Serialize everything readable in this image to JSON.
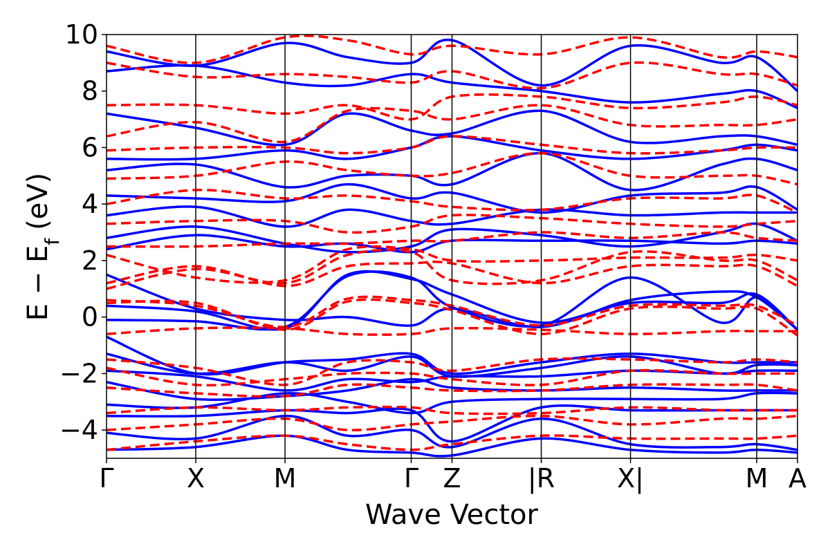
{
  "chart_data": {
    "type": "line",
    "xlabel": "Wave Vector",
    "ylabel": "E − E",
    "ylabel_sub": "f",
    "ylabel_unit": "(eV)",
    "ylim": [
      -5,
      10
    ],
    "yticks": [
      -4,
      -2,
      0,
      2,
      4,
      6,
      8,
      10
    ],
    "ytick_labels": [
      "−4",
      "−2",
      "0",
      "2",
      "4",
      "6",
      "8",
      "10"
    ],
    "kpoints": [
      {
        "label": "Γ",
        "x": 0.0
      },
      {
        "label": "X",
        "x": 1.0
      },
      {
        "label": "M",
        "x": 2.0
      },
      {
        "label": "Γ",
        "x": 3.414
      },
      {
        "label": "Z",
        "x": 3.871
      },
      {
        "label": "|R",
        "x": 4.871
      },
      {
        "label": "X|",
        "x": 5.871
      },
      {
        "label": "M",
        "x": 7.285
      },
      {
        "label": "A",
        "x": 7.742
      }
    ],
    "xlim": [
      0,
      7.742
    ],
    "series_styles": {
      "blue": "#0000ff",
      "red": "#ff0000"
    },
    "series": [
      {
        "color": "blue",
        "values": [
          -0.1,
          -0.15,
          -0.35,
          1.45,
          1.4,
          0.35,
          -0.3,
          1.4,
          -0.2,
          0.7,
          -0.45
        ]
      },
      {
        "color": "blue",
        "values": [
          0.4,
          0.2,
          -0.4,
          1.5,
          1.35,
          0.8,
          -0.2,
          0.5,
          0.5,
          0.8,
          -0.45
        ]
      },
      {
        "color": "blue",
        "values": [
          1.5,
          0.3,
          -0.1,
          0.0,
          -0.3,
          0.3,
          -0.35,
          0.6,
          0.9,
          0.7,
          -0.45
        ]
      },
      {
        "color": "blue",
        "values": [
          -0.7,
          -2.0,
          -1.6,
          -1.5,
          -1.3,
          -2.0,
          -1.6,
          -1.3,
          -1.6,
          -1.6,
          -1.6
        ]
      },
      {
        "color": "blue",
        "values": [
          -1.3,
          -2.0,
          -1.6,
          -1.9,
          -1.4,
          -2.1,
          -1.8,
          -1.4,
          -2.0,
          -1.7,
          -1.7
        ]
      },
      {
        "color": "blue",
        "values": [
          -1.9,
          -2.1,
          -2.6,
          -2.2,
          -2.3,
          -2.1,
          -2.1,
          -1.9,
          -2.0,
          -1.9,
          -1.9
        ]
      },
      {
        "color": "blue",
        "values": [
          -2.3,
          -2.9,
          -2.8,
          -2.6,
          -2.2,
          -2.5,
          -2.6,
          -2.5,
          -2.6,
          -2.6,
          -2.6
        ]
      },
      {
        "color": "blue",
        "values": [
          -3.1,
          -3.2,
          -2.7,
          -3.0,
          -3.4,
          -3.0,
          -2.9,
          -2.9,
          -2.9,
          -2.7,
          -2.7
        ]
      },
      {
        "color": "blue",
        "values": [
          -3.5,
          -3.5,
          -3.3,
          -3.4,
          -3.3,
          -4.4,
          -3.2,
          -3.3,
          -3.3,
          -3.3,
          -3.3
        ]
      },
      {
        "color": "blue",
        "values": [
          -4.1,
          -4.3,
          -3.5,
          -4.2,
          -4.0,
          -4.6,
          -3.6,
          -4.5,
          -4.6,
          -4.5,
          -4.7
        ]
      },
      {
        "color": "blue",
        "values": [
          -4.7,
          -4.6,
          -4.2,
          -4.7,
          -4.8,
          -4.9,
          -4.3,
          -4.7,
          -4.8,
          -4.7,
          -4.8
        ]
      },
      {
        "color": "blue",
        "values": [
          2.4,
          2.9,
          2.5,
          2.6,
          2.3,
          2.7,
          2.7,
          2.7,
          2.6,
          2.7,
          2.6
        ]
      },
      {
        "color": "blue",
        "values": [
          2.8,
          3.2,
          2.6,
          2.3,
          2.5,
          3.1,
          2.9,
          2.5,
          3.0,
          3.3,
          2.7
        ]
      },
      {
        "color": "blue",
        "values": [
          3.6,
          3.9,
          3.2,
          3.8,
          3.4,
          3.3,
          3.8,
          3.6,
          3.7,
          3.7,
          3.7
        ]
      },
      {
        "color": "blue",
        "values": [
          4.3,
          4.2,
          4.1,
          4.7,
          4.2,
          4.4,
          3.7,
          4.3,
          4.4,
          4.6,
          3.8
        ]
      },
      {
        "color": "blue",
        "values": [
          5.2,
          5.4,
          4.6,
          5.0,
          5.0,
          4.7,
          5.8,
          4.5,
          5.4,
          5.6,
          5.2
        ]
      },
      {
        "color": "blue",
        "values": [
          5.6,
          5.6,
          5.9,
          5.6,
          6.0,
          6.4,
          5.9,
          5.6,
          5.9,
          6.1,
          5.9
        ]
      },
      {
        "color": "blue",
        "values": [
          7.2,
          6.7,
          6.1,
          7.2,
          6.6,
          6.5,
          7.3,
          6.2,
          6.4,
          6.4,
          6.1
        ]
      },
      {
        "color": "blue",
        "values": [
          8.7,
          8.9,
          8.3,
          8.2,
          8.6,
          8.3,
          8.0,
          7.6,
          7.9,
          8.0,
          7.4
        ]
      },
      {
        "color": "blue",
        "values": [
          9.4,
          8.9,
          9.7,
          9.2,
          9.0,
          9.8,
          8.2,
          9.6,
          9.0,
          9.2,
          8.0
        ]
      },
      {
        "color": "red",
        "values": [
          0.6,
          0.4,
          -0.35,
          0.65,
          0.6,
          0.4,
          -0.3,
          0.4,
          0.4,
          0.4,
          -0.3
        ]
      },
      {
        "color": "red",
        "values": [
          0.5,
          0.5,
          -0.45,
          0.55,
          0.5,
          0.25,
          -0.6,
          0.3,
          0.3,
          0.3,
          -0.65
        ]
      },
      {
        "color": "red",
        "values": [
          -0.6,
          -0.4,
          -0.4,
          -0.6,
          -0.6,
          -0.4,
          -0.45,
          -0.6,
          -0.5,
          -0.5,
          -0.5
        ]
      },
      {
        "color": "red",
        "values": [
          1.2,
          1.8,
          1.1,
          1.8,
          1.9,
          1.9,
          1.2,
          1.8,
          1.8,
          1.8,
          1.1
        ]
      },
      {
        "color": "red",
        "values": [
          1.0,
          1.7,
          1.2,
          2.2,
          2.3,
          1.3,
          1.3,
          2.3,
          2.0,
          2.0,
          1.3
        ]
      },
      {
        "color": "red",
        "values": [
          2.2,
          1.4,
          1.3,
          2.4,
          2.4,
          2.0,
          2.0,
          2.1,
          2.1,
          2.2,
          2.0
        ]
      },
      {
        "color": "red",
        "values": [
          2.5,
          2.5,
          2.6,
          2.6,
          2.7,
          2.7,
          3.0,
          2.8,
          3.0,
          2.8,
          2.7
        ]
      },
      {
        "color": "red",
        "values": [
          3.3,
          3.4,
          3.4,
          3.0,
          3.2,
          3.6,
          3.5,
          3.3,
          3.2,
          3.3,
          3.4
        ]
      },
      {
        "color": "red",
        "values": [
          4.0,
          4.5,
          4.2,
          4.3,
          4.1,
          3.9,
          3.8,
          4.2,
          4.2,
          4.3,
          3.7
        ]
      },
      {
        "color": "red",
        "values": [
          4.9,
          5.0,
          5.5,
          5.2,
          5.0,
          5.1,
          5.8,
          5.0,
          5.0,
          5.0,
          4.7
        ]
      },
      {
        "color": "red",
        "values": [
          5.9,
          6.0,
          6.0,
          5.8,
          6.0,
          6.4,
          6.1,
          5.8,
          5.9,
          6.0,
          6.0
        ]
      },
      {
        "color": "red",
        "values": [
          6.4,
          6.9,
          6.2,
          7.3,
          7.3,
          7.0,
          7.5,
          6.8,
          6.8,
          6.8,
          7.0
        ]
      },
      {
        "color": "red",
        "values": [
          7.5,
          7.5,
          7.2,
          7.5,
          7.0,
          7.8,
          7.8,
          7.4,
          7.6,
          7.8,
          7.5
        ]
      },
      {
        "color": "red",
        "values": [
          9.0,
          8.5,
          8.6,
          8.5,
          8.3,
          8.7,
          8.1,
          9.0,
          8.6,
          8.6,
          8.2
        ]
      },
      {
        "color": "red",
        "values": [
          9.6,
          9.0,
          9.9,
          9.8,
          9.3,
          9.6,
          9.3,
          9.9,
          9.2,
          9.4,
          9.2
        ]
      },
      {
        "color": "red",
        "values": [
          -1.5,
          -1.8,
          -2.4,
          -1.6,
          -1.6,
          -1.9,
          -1.5,
          -1.5,
          -1.6,
          -1.5,
          -1.6
        ]
      },
      {
        "color": "red",
        "values": [
          -1.8,
          -2.4,
          -2.2,
          -2.0,
          -2.0,
          -2.2,
          -2.4,
          -1.9,
          -2.0,
          -2.0,
          -2.0
        ]
      },
      {
        "color": "red",
        "values": [
          -2.5,
          -2.7,
          -2.8,
          -2.4,
          -2.5,
          -2.6,
          -2.6,
          -2.4,
          -2.4,
          -2.4,
          -2.6
        ]
      },
      {
        "color": "red",
        "values": [
          -3.4,
          -3.2,
          -3.3,
          -3.2,
          -3.2,
          -3.4,
          -3.4,
          -3.2,
          -3.3,
          -3.3,
          -3.3
        ]
      },
      {
        "color": "red",
        "values": [
          -4.0,
          -3.8,
          -3.6,
          -4.0,
          -3.8,
          -3.7,
          -3.5,
          -3.8,
          -3.6,
          -3.6,
          -3.5
        ]
      },
      {
        "color": "red",
        "values": [
          -4.7,
          -4.4,
          -4.2,
          -4.5,
          -4.7,
          -4.5,
          -4.2,
          -4.3,
          -4.3,
          -4.3,
          -4.2
        ]
      }
    ]
  }
}
